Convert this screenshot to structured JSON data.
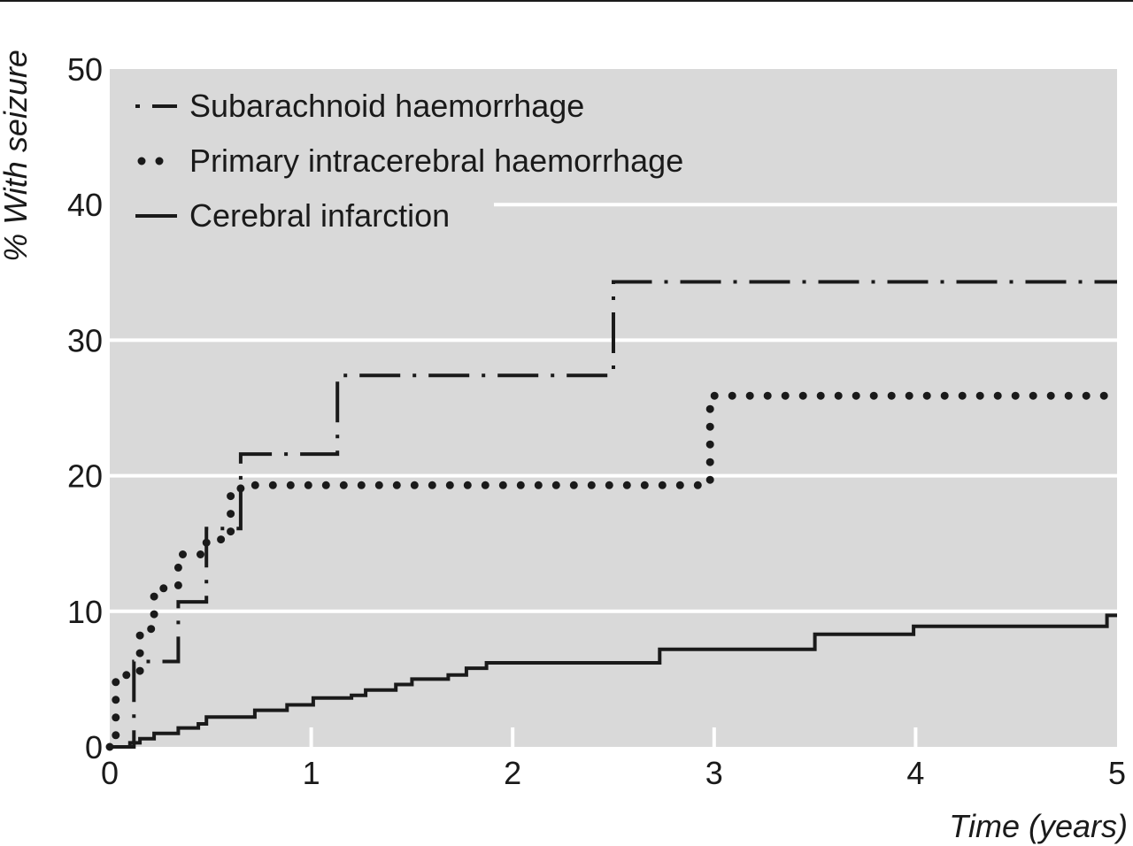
{
  "chart_data": {
    "type": "line",
    "title": "",
    "xlabel": "Time (years)",
    "ylabel": "% With seizure",
    "xlim": [
      0,
      5
    ],
    "ylim": [
      0,
      50
    ],
    "x_ticks": [
      "0",
      "1",
      "2",
      "3",
      "4",
      "5"
    ],
    "y_ticks": [
      "0",
      "10",
      "20",
      "30",
      "40",
      "50"
    ],
    "grid": "horizontal",
    "legend_position": "top-left",
    "background_color": "#d9d9d9",
    "series": [
      {
        "name": "Subarachnoid haemorrhage",
        "line_style": "dash-dot",
        "color": "#1a1a1a",
        "step_points": [
          [
            0,
            0
          ],
          [
            0.12,
            0
          ],
          [
            0.12,
            6.3
          ],
          [
            0.34,
            6.3
          ],
          [
            0.34,
            10.7
          ],
          [
            0.48,
            10.7
          ],
          [
            0.48,
            16.1
          ],
          [
            0.65,
            16.1
          ],
          [
            0.65,
            21.6
          ],
          [
            1.13,
            21.6
          ],
          [
            1.13,
            27.4
          ],
          [
            2.5,
            27.4
          ],
          [
            2.5,
            34.3
          ],
          [
            5.0,
            34.3
          ]
        ]
      },
      {
        "name": "Primary intracerebral haemorrhage",
        "line_style": "dotted",
        "color": "#1a1a1a",
        "step_points": [
          [
            0,
            0
          ],
          [
            0.03,
            0
          ],
          [
            0.03,
            4.8
          ],
          [
            0.08,
            4.8
          ],
          [
            0.08,
            5.3
          ],
          [
            0.15,
            5.3
          ],
          [
            0.15,
            8.7
          ],
          [
            0.22,
            8.7
          ],
          [
            0.22,
            11.7
          ],
          [
            0.34,
            11.7
          ],
          [
            0.34,
            14.2
          ],
          [
            0.48,
            14.2
          ],
          [
            0.48,
            15.3
          ],
          [
            0.6,
            15.3
          ],
          [
            0.6,
            19.0
          ],
          [
            0.65,
            19.0
          ],
          [
            0.65,
            19.3
          ],
          [
            2.98,
            19.3
          ],
          [
            2.98,
            25.9
          ],
          [
            5.0,
            25.9
          ]
        ]
      },
      {
        "name": "Cerebral infarction",
        "line_style": "solid",
        "color": "#1a1a1a",
        "step_points": [
          [
            0,
            0
          ],
          [
            0.1,
            0
          ],
          [
            0.1,
            0.3
          ],
          [
            0.15,
            0.3
          ],
          [
            0.15,
            0.6
          ],
          [
            0.22,
            0.6
          ],
          [
            0.22,
            1.0
          ],
          [
            0.34,
            1.0
          ],
          [
            0.34,
            1.4
          ],
          [
            0.44,
            1.4
          ],
          [
            0.44,
            1.7
          ],
          [
            0.48,
            1.7
          ],
          [
            0.48,
            2.2
          ],
          [
            0.72,
            2.2
          ],
          [
            0.72,
            2.7
          ],
          [
            0.88,
            2.7
          ],
          [
            0.88,
            3.1
          ],
          [
            1.01,
            3.1
          ],
          [
            1.01,
            3.6
          ],
          [
            1.2,
            3.6
          ],
          [
            1.2,
            3.8
          ],
          [
            1.27,
            3.8
          ],
          [
            1.27,
            4.2
          ],
          [
            1.42,
            4.2
          ],
          [
            1.42,
            4.6
          ],
          [
            1.5,
            4.6
          ],
          [
            1.5,
            5.0
          ],
          [
            1.68,
            5.0
          ],
          [
            1.68,
            5.3
          ],
          [
            1.77,
            5.3
          ],
          [
            1.77,
            5.8
          ],
          [
            1.87,
            5.8
          ],
          [
            1.87,
            6.2
          ],
          [
            2.73,
            6.2
          ],
          [
            2.73,
            7.2
          ],
          [
            3.5,
            7.2
          ],
          [
            3.5,
            8.3
          ],
          [
            3.99,
            8.3
          ],
          [
            3.99,
            8.9
          ],
          [
            4.95,
            8.9
          ],
          [
            4.95,
            9.7
          ],
          [
            5.0,
            9.7
          ]
        ]
      }
    ]
  }
}
